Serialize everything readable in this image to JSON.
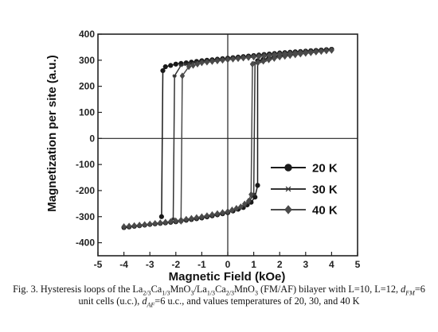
{
  "chart_data": {
    "type": "line",
    "xlabel": "Magnetic Field (kOe)",
    "ylabel": "Magnetization per site (a.u.)",
    "xlim": [
      -5,
      5
    ],
    "ylim": [
      -450,
      400
    ],
    "xticks": [
      -5,
      -4,
      -3,
      -2,
      -1,
      0,
      1,
      2,
      3,
      4,
      5
    ],
    "yticks": [
      -400,
      -300,
      -200,
      -100,
      0,
      100,
      200,
      300,
      400
    ],
    "legend_position": "lower-right, inside plot",
    "series": [
      {
        "name": "20 K",
        "color": "#1a1a1a",
        "marker": "filled-circle",
        "upper_branch": {
          "x": [
            4.0,
            3.0,
            2.0,
            1.0,
            0.0,
            -1.0,
            -2.0,
            -2.4,
            -2.5,
            -2.55
          ],
          "y": [
            342,
            335,
            328,
            318,
            308,
            298,
            285,
            275,
            260,
            -300
          ]
        },
        "lower_branch": {
          "x": [
            -4.0,
            -3.0,
            -2.0,
            -1.0,
            0.0,
            0.6,
            0.9,
            1.05,
            1.15,
            1.15,
            2.0,
            3.0,
            4.0
          ],
          "y": [
            -342,
            -330,
            -320,
            -305,
            -285,
            -265,
            -245,
            -225,
            -180,
            298,
            318,
            330,
            342
          ]
        }
      },
      {
        "name": "30 K",
        "color": "#333333",
        "marker": "star",
        "upper_branch": {
          "x": [
            4.0,
            3.0,
            2.0,
            1.0,
            0.0,
            -1.0,
            -1.8,
            -2.05,
            -2.1
          ],
          "y": [
            340,
            333,
            326,
            316,
            306,
            295,
            280,
            240,
            -310
          ]
        },
        "lower_branch": {
          "x": [
            -4.0,
            -3.0,
            -2.0,
            -1.0,
            0.0,
            0.5,
            0.8,
            1.0,
            1.05,
            2.0,
            3.0,
            4.0
          ],
          "y": [
            -340,
            -330,
            -318,
            -303,
            -283,
            -265,
            -245,
            -215,
            290,
            315,
            328,
            340
          ]
        }
      },
      {
        "name": "40 K",
        "color": "#4a4a4a",
        "marker": "diamond",
        "upper_branch": {
          "x": [
            4.0,
            3.0,
            2.0,
            1.0,
            0.0,
            -1.0,
            -1.5,
            -1.75,
            -1.8
          ],
          "y": [
            338,
            330,
            322,
            312,
            302,
            290,
            275,
            240,
            -318
          ]
        },
        "lower_branch": {
          "x": [
            -4.0,
            -3.0,
            -2.0,
            -1.0,
            0.0,
            0.5,
            0.8,
            0.9,
            0.95,
            2.0,
            3.0,
            4.0
          ],
          "y": [
            -338,
            -328,
            -316,
            -300,
            -280,
            -262,
            -240,
            -215,
            285,
            312,
            326,
            338
          ]
        }
      }
    ]
  },
  "caption": {
    "fig": "Fig. 3. Hysteresis loops of the La",
    "s1": "2/3",
    "t1": "Ca",
    "s2": "1/3",
    "t2": "MnO",
    "s3": "3",
    "t3": "/La",
    "s4": "1/3",
    "t4": "Ca",
    "s5": "2/3",
    "t5": "MnO",
    "s6": "3",
    "t6": " (FM/AF) bilayer with L=10, L=12, ",
    "d1": "d",
    "d1sub": "FM",
    "t7": "=6 unit cells (u.c.), ",
    "d2": "d",
    "d2sub": "AF",
    "t8": "=6 u.c., and values temperatures of 20, 30, and 40 K"
  }
}
